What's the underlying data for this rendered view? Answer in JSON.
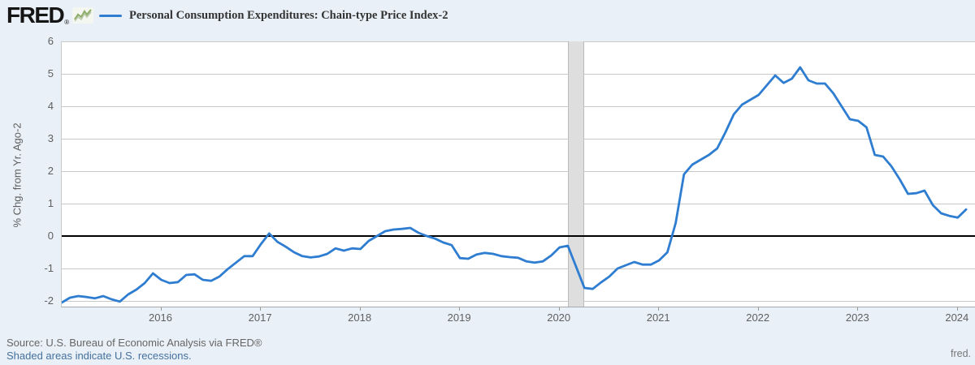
{
  "header": {
    "logo_text": "FRED",
    "logo_registered": "®"
  },
  "footer": {
    "source_text": "Source: U.S. Bureau of Economic Analysis via FRED®",
    "recession_note": "Shaded areas indicate U.S. recessions.",
    "watermark": "fred."
  },
  "colors": {
    "line": "#2e7dd1",
    "page_background": "#e9f0f7",
    "plot_background": "#ffffff",
    "gridline": "#c9c9c9",
    "zero_line": "#000000",
    "recession_band_fill": "#dedede",
    "recession_band_edge": "#bbbbbb",
    "tick_label": "#5f5f5f",
    "legend_text": "#333333",
    "link": "#44719e",
    "sparkline_icon": "#8fae6d"
  },
  "chart_data": {
    "type": "line",
    "title": "Personal Consumption Expenditures: Chain-type Price Index-2",
    "ylabel": "% Chg. from Yr. Ago-2",
    "xlabel": "",
    "frequency": "monthly",
    "x_start": "2015-01",
    "x_end": "2024-02",
    "ylim": [
      -2.175,
      6
    ],
    "y_ticks": [
      6,
      5,
      4,
      3,
      2,
      1,
      0,
      -1,
      -2
    ],
    "x_tick_years": [
      2016,
      2017,
      2018,
      2019,
      2020,
      2021,
      2022,
      2023,
      2024
    ],
    "grid": true,
    "legend_position": "top",
    "recession_bands": [
      {
        "start": "2020-02",
        "end": "2020-04"
      }
    ],
    "series": [
      {
        "name": "Personal Consumption Expenditures: Chain-type Price Index-2",
        "values": [
          -2.05,
          -1.9,
          -1.85,
          -1.88,
          -1.92,
          -1.85,
          -1.95,
          -2.02,
          -1.8,
          -1.65,
          -1.45,
          -1.15,
          -1.35,
          -1.45,
          -1.42,
          -1.2,
          -1.18,
          -1.35,
          -1.38,
          -1.25,
          -1.02,
          -0.82,
          -0.62,
          -0.62,
          -0.25,
          0.08,
          -0.18,
          -0.33,
          -0.5,
          -0.62,
          -0.66,
          -0.63,
          -0.55,
          -0.38,
          -0.45,
          -0.38,
          -0.4,
          -0.15,
          0.0,
          0.15,
          0.2,
          0.22,
          0.25,
          0.1,
          0.0,
          -0.08,
          -0.2,
          -0.28,
          -0.68,
          -0.7,
          -0.57,
          -0.52,
          -0.55,
          -0.62,
          -0.65,
          -0.67,
          -0.78,
          -0.82,
          -0.78,
          -0.6,
          -0.35,
          -0.3,
          -0.95,
          -1.6,
          -1.63,
          -1.43,
          -1.25,
          -1.0,
          -0.9,
          -0.8,
          -0.88,
          -0.88,
          -0.75,
          -0.5,
          0.4,
          1.9,
          2.2,
          2.35,
          2.5,
          2.7,
          3.2,
          3.75,
          4.05,
          4.2,
          4.35,
          4.65,
          4.95,
          4.72,
          4.85,
          5.2,
          4.8,
          4.7,
          4.7,
          4.4,
          4.0,
          3.6,
          3.55,
          3.35,
          2.5,
          2.45,
          2.15,
          1.75,
          1.3,
          1.32,
          1.4,
          0.95,
          0.7,
          0.62,
          0.57,
          0.82
        ]
      }
    ]
  }
}
